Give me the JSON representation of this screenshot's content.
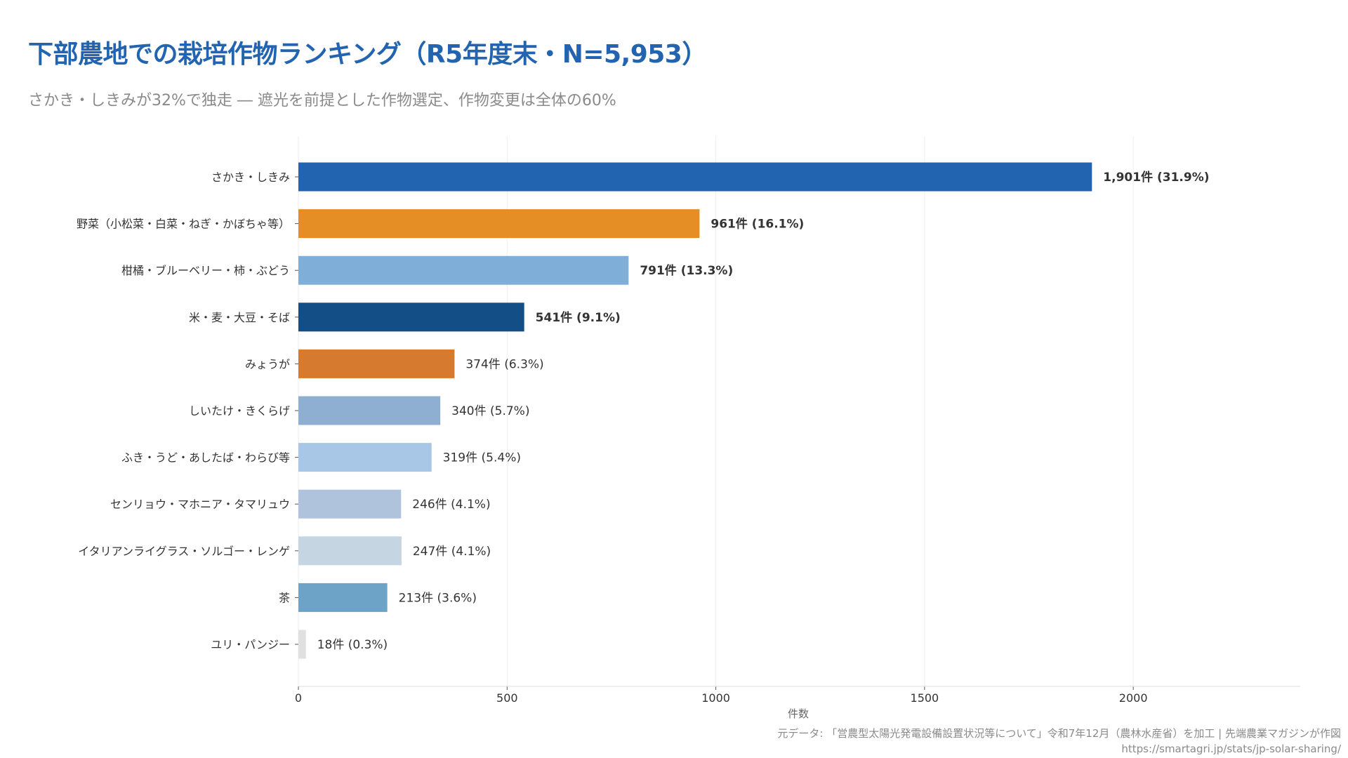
{
  "title": "下部農地での栽培作物ランキング（R5年度末・N=5,953）",
  "subtitle": "さかき・しきみが32%で独走 ― 遮光を前提とした作物選定、作物変更は全体の60%",
  "footer": {
    "source": "元データ: 「営農型太陽光発電設備設置状況等について」令和7年12月（農林水産省）を加工 | 先端農業マガジンが作図",
    "url": "https://smartagri.jp/stats/jp-solar-sharing/"
  },
  "chart_data": {
    "type": "bar",
    "orientation": "horizontal",
    "title": "下部農地での栽培作物ランキング（R5年度末・N=5,953）",
    "xlabel": "件数",
    "ylabel": "",
    "xlim": [
      0,
      2400
    ],
    "xticks": [
      0,
      500,
      1000,
      1500,
      2000
    ],
    "grid": true,
    "categories": [
      "さかき・しきみ",
      "野菜（小松菜・白菜・ねぎ・かぼちゃ等）",
      "柑橘・ブルーベリー・柿・ぶどう",
      "米・麦・大豆・そば",
      "みょうが",
      "しいたけ・きくらげ",
      "ふき・うど・あしたば・わらび等",
      "センリョウ・マホニア・タマリュウ",
      "イタリアンライグラス・ソルゴー・レンゲ",
      "茶",
      "ユリ・パンジー"
    ],
    "values": [
      1901,
      961,
      791,
      541,
      374,
      340,
      319,
      246,
      247,
      213,
      18
    ],
    "labels": [
      "1,901件 (31.9%)",
      "961件 (16.1%)",
      "791件 (13.3%)",
      "541件 (9.1%)",
      "374件 (6.3%)",
      "340件 (5.7%)",
      "319件 (5.4%)",
      "246件 (4.1%)",
      "247件 (4.1%)",
      "213件 (3.6%)",
      "18件 (0.3%)"
    ],
    "bold_labels": [
      true,
      true,
      true,
      true,
      false,
      false,
      false,
      false,
      false,
      false,
      false
    ],
    "colors": [
      "#2364b0",
      "#e58e26",
      "#7fafd8",
      "#134e86",
      "#d57a2e",
      "#8eafd2",
      "#a8c6e6",
      "#b0c3dd",
      "#c5d5e2",
      "#6ca3c7",
      "#e0e0e0"
    ]
  }
}
